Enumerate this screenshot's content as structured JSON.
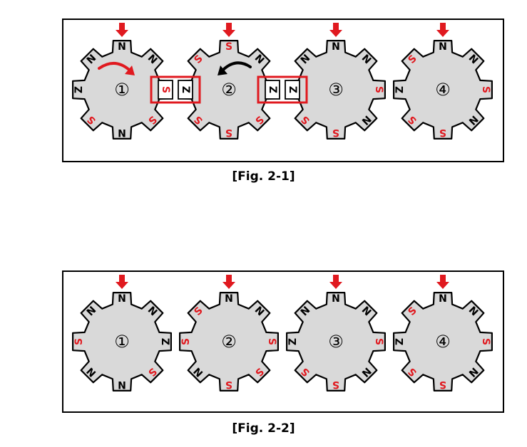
{
  "colors": {
    "north": "#000000",
    "south": "#e0191f",
    "arrow": "#e0191f",
    "gear_fill": "#d9d9d9",
    "highlight": "#e0191f"
  },
  "figures": [
    {
      "caption": "[Fig. 2-1]",
      "gears": [
        {
          "number": "1",
          "poles": [
            "N",
            "N",
            "Z",
            "S",
            "N",
            "S",
            "Z",
            "N"
          ],
          "input_arrow": true
        },
        {
          "number": "2",
          "poles": [
            "S",
            "N",
            "S",
            "S",
            "S",
            "S",
            "Z",
            "S"
          ],
          "input_arrow": true
        },
        {
          "number": "3",
          "poles": [
            "N",
            "N",
            "S",
            "N",
            "S",
            "S",
            "Z",
            "N"
          ],
          "input_arrow": true
        },
        {
          "number": "4",
          "poles": [
            "N",
            "N",
            "S",
            "N",
            "S",
            "S",
            "Z",
            "S"
          ],
          "input_arrow": true
        }
      ],
      "rotation_arrows": [
        {
          "gear": 1,
          "direction": "clockwise",
          "color": "#e0191f"
        },
        {
          "gear": 2,
          "direction": "counterclockwise",
          "color": "#000000"
        }
      ],
      "highlight_boxes": [
        {
          "between": [
            1,
            2
          ],
          "labels": [
            "S",
            "Z"
          ]
        },
        {
          "between": [
            2,
            3
          ],
          "labels": [
            "Z",
            "Z"
          ]
        }
      ]
    },
    {
      "caption": "[Fig. 2-2]",
      "gears": [
        {
          "number": "1",
          "poles": [
            "N",
            "N",
            "Z",
            "S",
            "N",
            "N",
            "S",
            "N"
          ],
          "input_arrow": true
        },
        {
          "number": "2",
          "poles": [
            "N",
            "N",
            "S",
            "S",
            "S",
            "N",
            "S",
            "S"
          ],
          "input_arrow": true
        },
        {
          "number": "3",
          "poles": [
            "N",
            "N",
            "S",
            "N",
            "S",
            "S",
            "Z",
            "N"
          ],
          "input_arrow": true
        },
        {
          "number": "4",
          "poles": [
            "N",
            "N",
            "S",
            "N",
            "S",
            "S",
            "Z",
            "S"
          ],
          "input_arrow": true
        }
      ],
      "rotation_arrows": [],
      "highlight_boxes": []
    }
  ]
}
